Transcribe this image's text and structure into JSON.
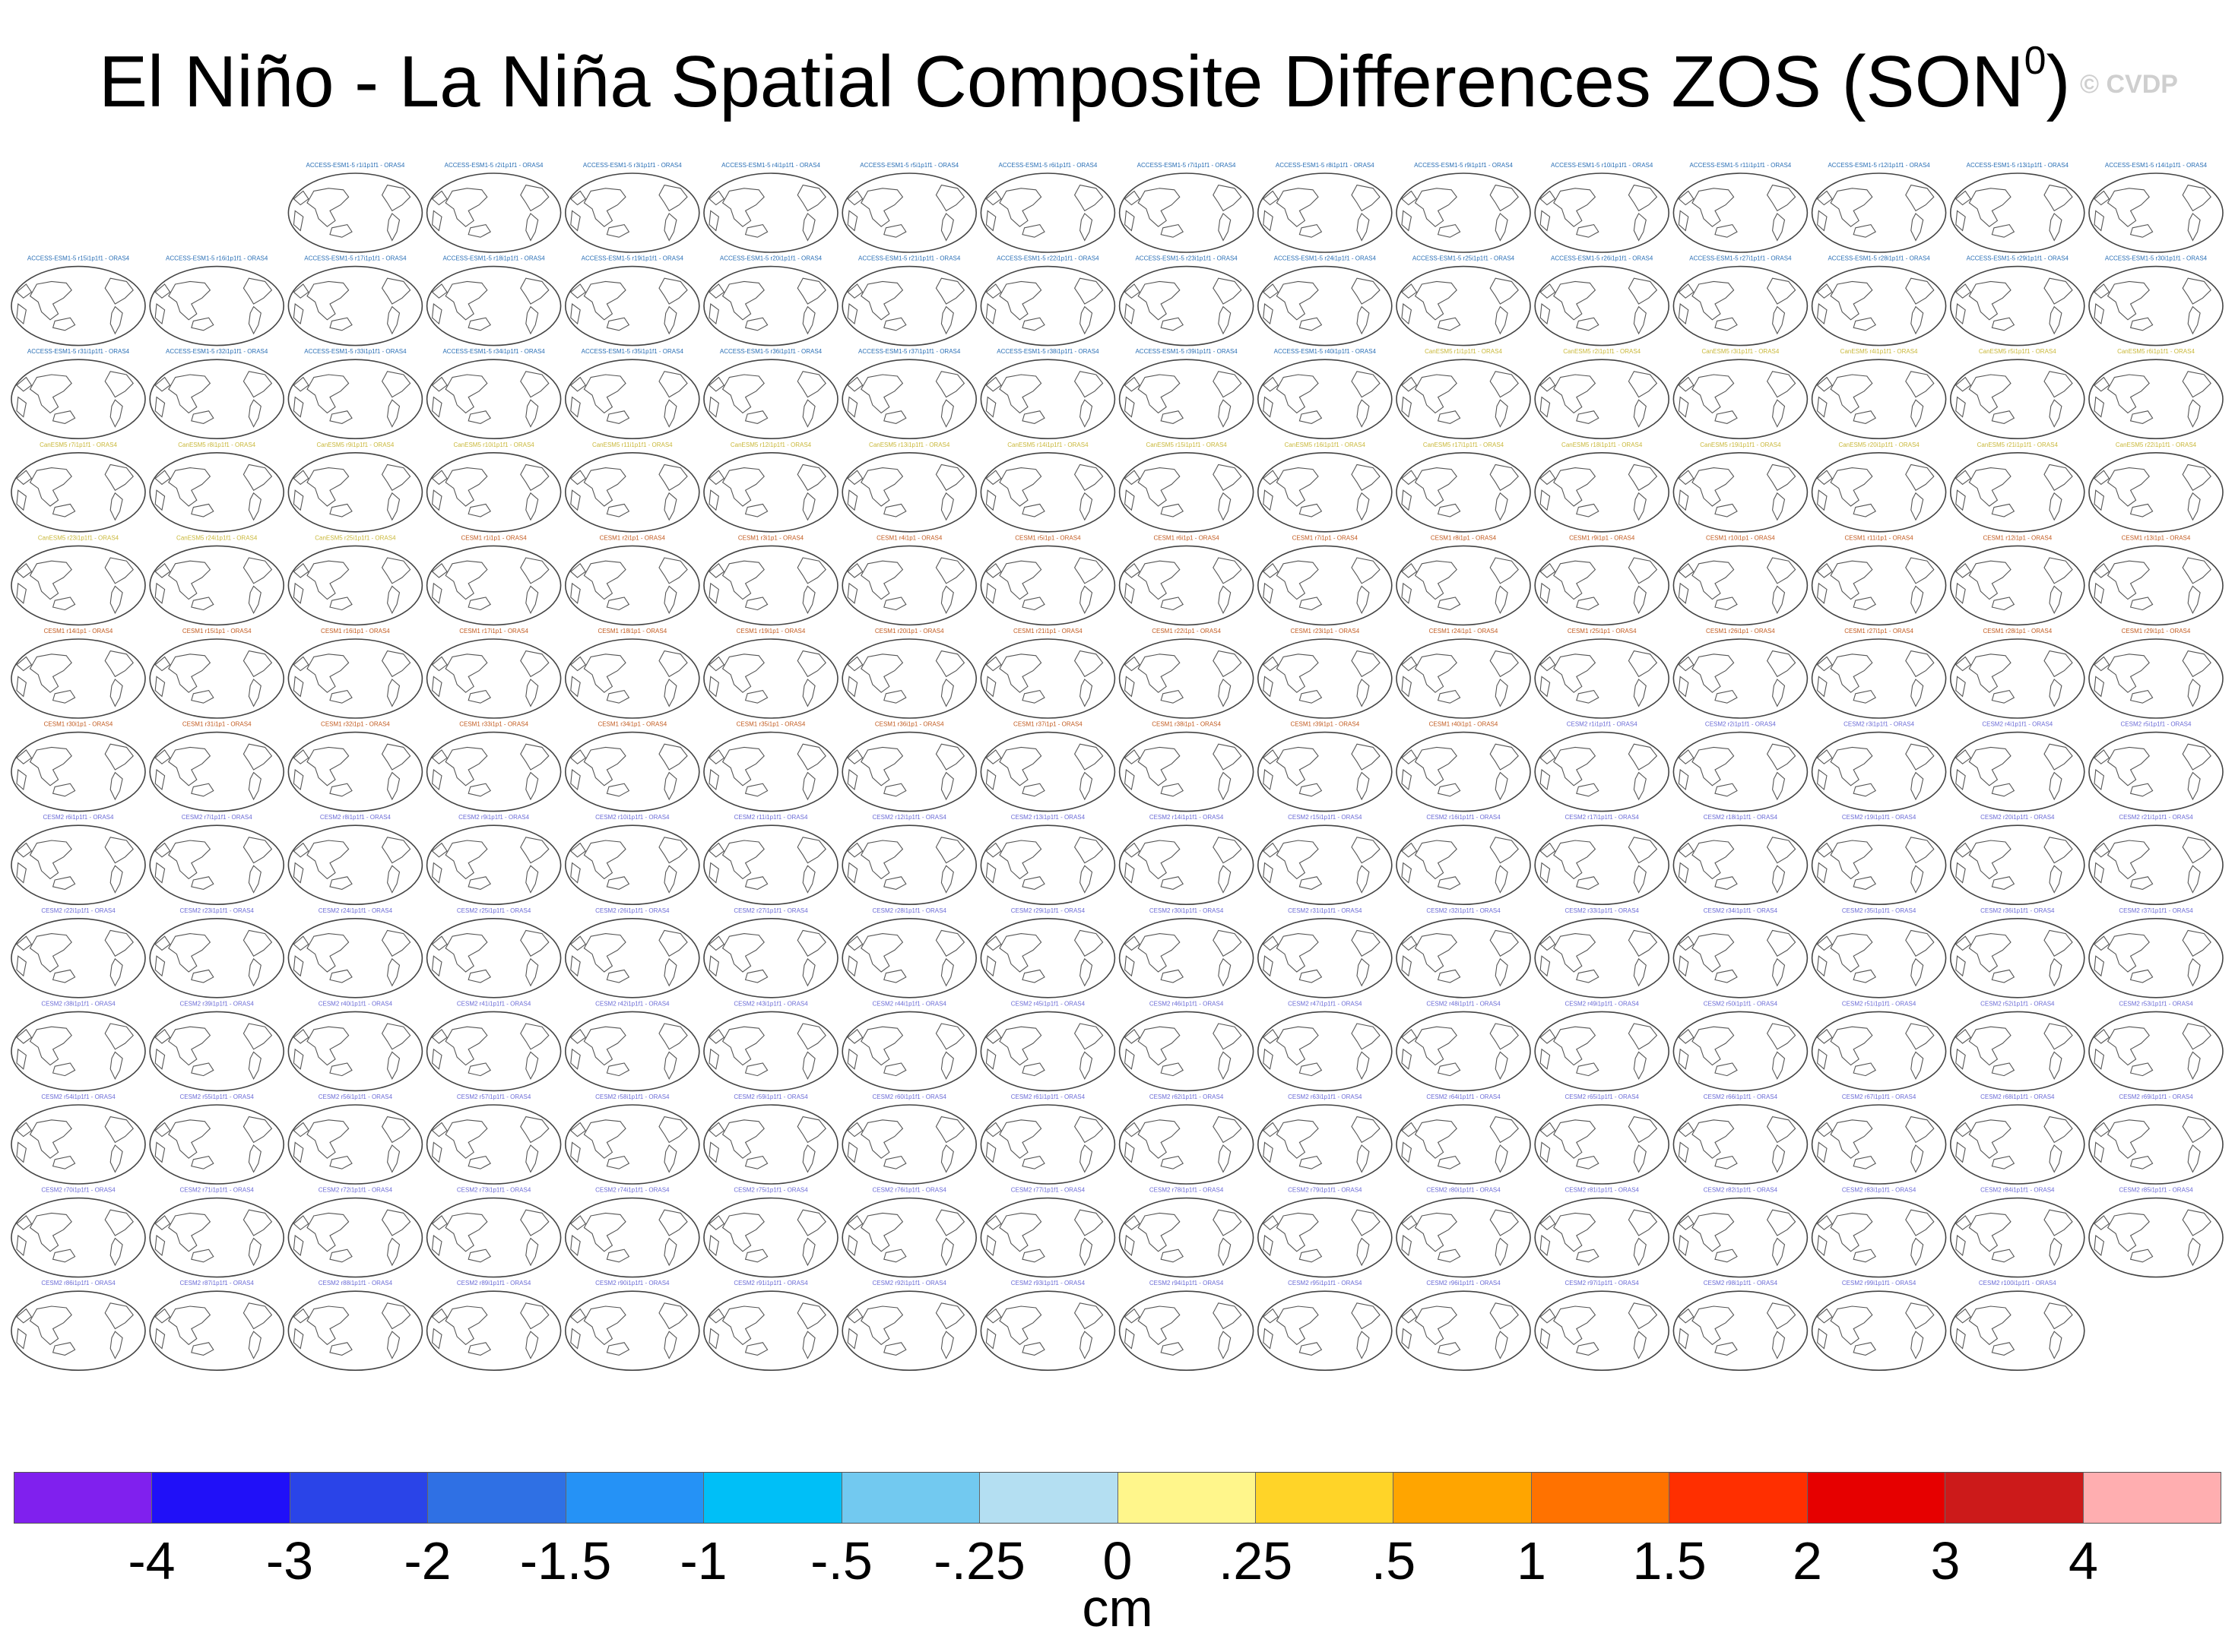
{
  "title": "El Niño - La Niña Spatial Composite Differences ZOS (SON",
  "title_sup": "0",
  "title_end": ")",
  "watermark": "© CVDP",
  "panel_label_suffix": " - ORAS4",
  "panel_groups": [
    {
      "model": "ACCESS-ESM1-5",
      "member_format": "r{n}i1p1f1",
      "count": 40,
      "color": "#2a6fb5"
    },
    {
      "model": "CanESM5",
      "member_format": "r{n}i1p1f1",
      "count": 25,
      "color": "#c9b83a"
    },
    {
      "model": "CESM1",
      "member_format": "r{n}i1p1",
      "count": 40,
      "color": "#c25b20"
    },
    {
      "model": "CESM2",
      "member_format": "r{n}i1p1f1",
      "count": 100,
      "color": "#6b6bd6"
    }
  ],
  "chart_data": {
    "type": "heatmap",
    "title": "El Niño - La Niña Spatial Composite Differences ZOS (SON0)",
    "panels_shown": 205,
    "panel_reference": "ORAS4",
    "colorbar": {
      "unit": "cm",
      "tick_labels": [
        "-4",
        "-3",
        "-2",
        "-1.5",
        "-1",
        "-.5",
        "-.25",
        "0",
        ".25",
        ".5",
        "1",
        "1.5",
        "2",
        "3",
        "4"
      ],
      "colors": [
        "#8020ee",
        "#2010f8",
        "#2a44e8",
        "#2f70e4",
        "#2592f6",
        "#00bff7",
        "#72c9f0",
        "#b4dff2",
        "#fff68b",
        "#ffd428",
        "#ffa500",
        "#ff7200",
        "#ff2f00",
        "#e60000",
        "#cc1a1a",
        "#ffaeb0"
      ]
    }
  }
}
